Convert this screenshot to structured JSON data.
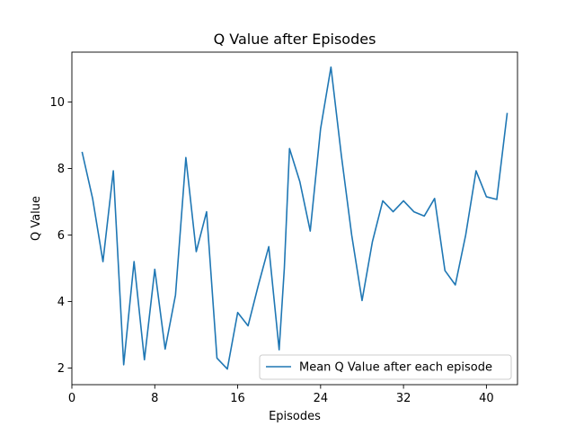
{
  "chart_data": {
    "type": "line",
    "title": "Q Value after Episodes",
    "xlabel": "Episodes",
    "ylabel": "Q Value",
    "xlim": [
      0,
      43
    ],
    "ylim": [
      1.5,
      11.5
    ],
    "xticks": [
      0,
      8,
      16,
      24,
      32,
      40
    ],
    "yticks": [
      2,
      4,
      6,
      8,
      10
    ],
    "grid": false,
    "legend": "lower right",
    "series": [
      {
        "name": "Mean Q Value after each episode",
        "color": "#1f77b4",
        "x": [
          1,
          2,
          3,
          4,
          5,
          6,
          7,
          8,
          9,
          10,
          11,
          12,
          13,
          14,
          15,
          16,
          17,
          18,
          19,
          20,
          20.5,
          21,
          22,
          23,
          24,
          25,
          26,
          27,
          28,
          29,
          30,
          31,
          32,
          33,
          34,
          35,
          36,
          37,
          38,
          39,
          40,
          41,
          42
        ],
        "values": [
          8.48,
          7.1,
          5.2,
          7.93,
          2.1,
          5.2,
          2.25,
          4.97,
          2.57,
          4.2,
          8.33,
          5.5,
          6.7,
          2.3,
          1.97,
          3.67,
          3.27,
          4.5,
          5.65,
          2.55,
          5.0,
          8.6,
          7.6,
          6.12,
          9.2,
          11.05,
          8.4,
          6.0,
          4.03,
          5.8,
          7.03,
          6.7,
          7.03,
          6.7,
          6.57,
          7.1,
          4.93,
          4.5,
          6.0,
          7.93,
          7.15,
          7.07,
          9.65
        ]
      }
    ]
  }
}
